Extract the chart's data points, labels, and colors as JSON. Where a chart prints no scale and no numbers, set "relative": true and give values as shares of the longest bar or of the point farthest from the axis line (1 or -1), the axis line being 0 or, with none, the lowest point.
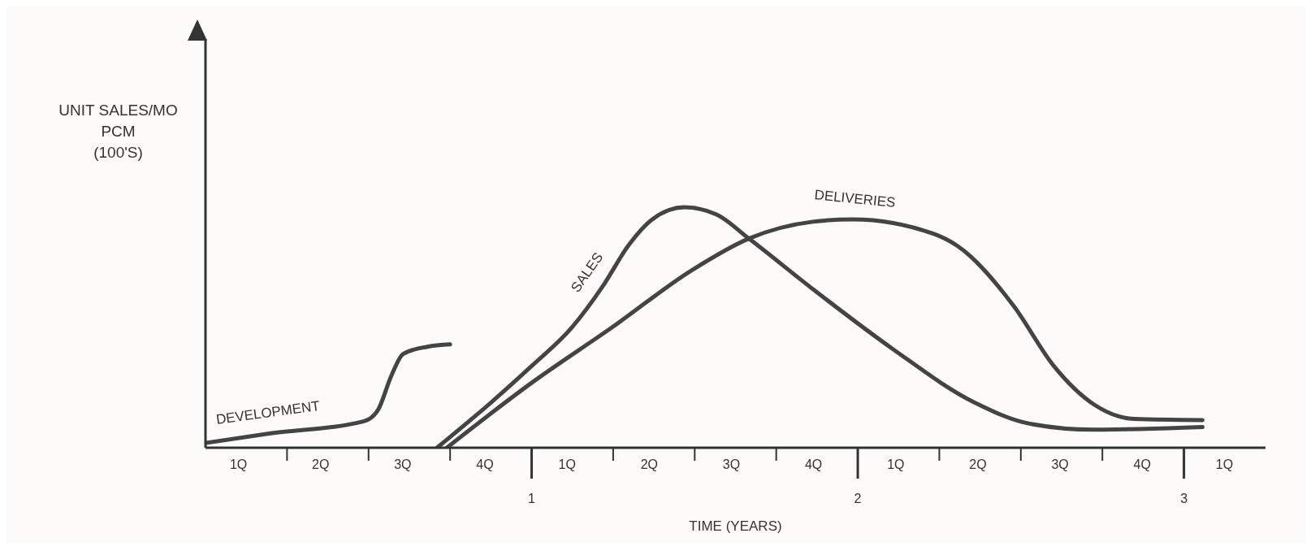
{
  "chart_data": {
    "type": "line",
    "relative": true,
    "xlabel": "TIME (YEARS)",
    "ylabel": "UNIT SALES/MO\nPCM\n(100'S)",
    "xlim": [
      0,
      3.25
    ],
    "xticks": [
      {
        "value": 0.25,
        "label": null
      },
      {
        "value": 0.5,
        "label": null
      },
      {
        "value": 0.75,
        "label": null
      },
      1,
      {
        "value": 1.25,
        "label": null
      },
      {
        "value": 1.5,
        "label": null
      },
      {
        "value": 1.75,
        "label": null
      },
      2,
      {
        "value": 2.25,
        "label": null
      },
      {
        "value": 2.5,
        "label": null
      },
      {
        "value": 2.75,
        "label": null
      },
      3
    ],
    "annotations": [
      "1Q",
      "2Q",
      "3Q",
      "4Q",
      "1Q",
      "2Q",
      "3Q",
      "4Q",
      "1Q",
      "2Q",
      "3Q",
      "4Q",
      "1Q"
    ],
    "grid": false,
    "legend": false,
    "marker": "none",
    "line_style": "solid",
    "series": [
      {
        "name": "DEVELOPMENT",
        "color": "#444444",
        "x": [
          0,
          0.2,
          0.486,
          0.53,
          0.57,
          0.606,
          0.68,
          0.75
        ],
        "values": [
          0.02,
          0.06,
          0.11,
          0.16,
          0.3,
          0.39,
          0.42,
          0.43
        ]
      },
      {
        "name": "SALES",
        "color": "#444444",
        "x": [
          0.71,
          0.877,
          1.0,
          1.123,
          1.222,
          1.296,
          1.37,
          1.468,
          1.567,
          1.666,
          1.862,
          2.108,
          2.355,
          2.527,
          2.724,
          3.057
        ],
        "values": [
          0,
          0.19,
          0.34,
          0.5,
          0.68,
          0.84,
          0.95,
          1.0,
          0.97,
          0.87,
          0.66,
          0.41,
          0.19,
          0.1,
          0.075,
          0.086
        ]
      },
      {
        "name": "DELIVERIES",
        "color": "#444444",
        "x": [
          0.74,
          1.0,
          1.246,
          1.493,
          1.666,
          1.862,
          1.985,
          2.232,
          2.305,
          2.478,
          2.601,
          2.724,
          2.847,
          3.057
        ],
        "values": [
          0,
          0.27,
          0.5,
          0.74,
          0.87,
          0.94,
          0.95,
          0.89,
          0.84,
          0.59,
          0.34,
          0.18,
          0.12,
          0.115
        ]
      }
    ]
  }
}
